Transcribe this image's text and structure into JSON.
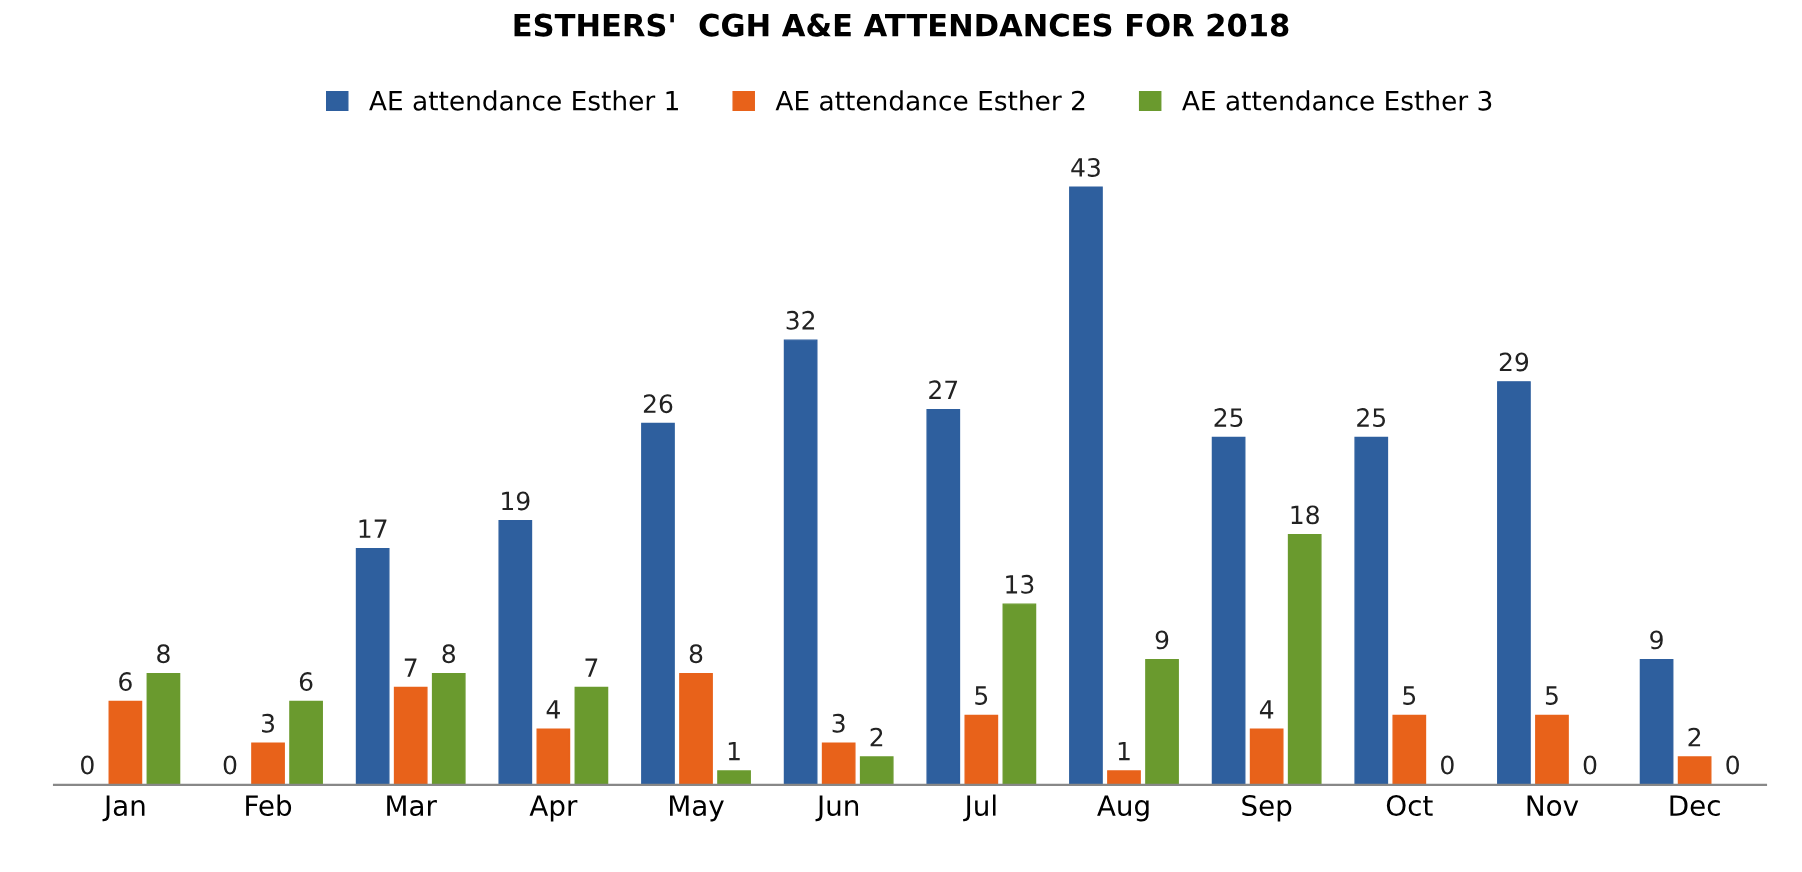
{
  "chart_data": {
    "type": "bar",
    "title": "ESTHERS'  CGH A&E ATTENDANCES FOR 2018",
    "categories": [
      "Jan",
      "Feb",
      "Mar",
      "Apr",
      "May",
      "Jun",
      "Jul",
      "Aug",
      "Sep",
      "Oct",
      "Nov",
      "Dec"
    ],
    "series": [
      {
        "name": "AE attendance Esther 1",
        "color": "#2e5f9e",
        "values": [
          0,
          0,
          17,
          19,
          26,
          32,
          27,
          43,
          25,
          25,
          29,
          9
        ]
      },
      {
        "name": "AE attendance Esther 2",
        "color": "#e8621a",
        "values": [
          6,
          3,
          7,
          4,
          8,
          3,
          5,
          1,
          4,
          5,
          5,
          2
        ]
      },
      {
        "name": "AE attendance Esther 3",
        "color": "#6a9a2e",
        "values": [
          8,
          6,
          8,
          7,
          1,
          2,
          13,
          9,
          18,
          0,
          0,
          0
        ]
      }
    ],
    "data_labels": true,
    "legend": "top",
    "grid": false
  }
}
